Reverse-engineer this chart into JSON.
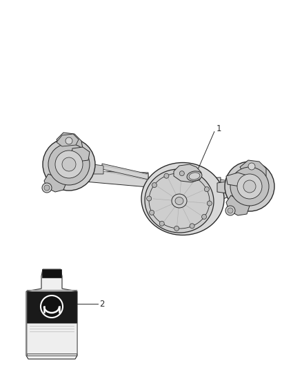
{
  "bg_color": "#ffffff",
  "fig_width": 4.38,
  "fig_height": 5.33,
  "dpi": 100,
  "item1_label": "1",
  "item2_label": "2",
  "line_color": "#2a2a2a",
  "label_color": "#2a2a2a",
  "axle_color": "#c8c8c8",
  "axle_edge": "#2a2a2a",
  "bottle_black": "#1a1a1a",
  "bottle_white": "#f0f0f0"
}
